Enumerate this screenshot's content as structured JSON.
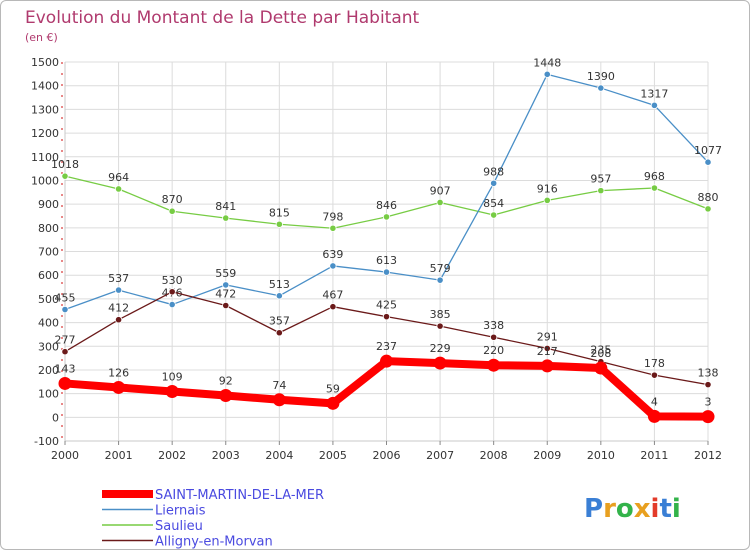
{
  "chart_data": {
    "type": "line",
    "title": "Evolution du Montant de la Dette par Habitant",
    "subtitle": "(en €)",
    "x": [
      "2000",
      "2001",
      "2002",
      "2003",
      "2004",
      "2005",
      "2006",
      "2007",
      "2008",
      "2009",
      "2010",
      "2011",
      "2012"
    ],
    "ylim": [
      -100,
      1500
    ],
    "yticks": [
      -100,
      0,
      100,
      200,
      300,
      400,
      500,
      600,
      700,
      800,
      900,
      1000,
      1100,
      1200,
      1300,
      1400,
      1500
    ],
    "grid": true,
    "legend_position": "bottom-left",
    "series": [
      {
        "name": "SAINT-MARTIN-DE-LA-MER",
        "color": "#ff0000",
        "values": [
          143,
          126,
          109,
          92,
          74,
          59,
          237,
          229,
          220,
          217,
          208,
          4,
          3
        ]
      },
      {
        "name": "Liernais",
        "color": "#4a8fc7",
        "values": [
          455,
          537,
          476,
          559,
          513,
          639,
          613,
          579,
          988,
          1448,
          1390,
          1317,
          1077
        ]
      },
      {
        "name": "Saulieu",
        "color": "#77cc44",
        "values": [
          1018,
          964,
          870,
          841,
          815,
          798,
          846,
          907,
          854,
          916,
          957,
          968,
          880
        ]
      },
      {
        "name": "Alligny-en-Morvan",
        "color": "#6b1a1a",
        "values": [
          277,
          412,
          530,
          472,
          357,
          467,
          425,
          385,
          338,
          291,
          235,
          178,
          138
        ]
      }
    ]
  },
  "logo": {
    "text": "Proxiti"
  }
}
